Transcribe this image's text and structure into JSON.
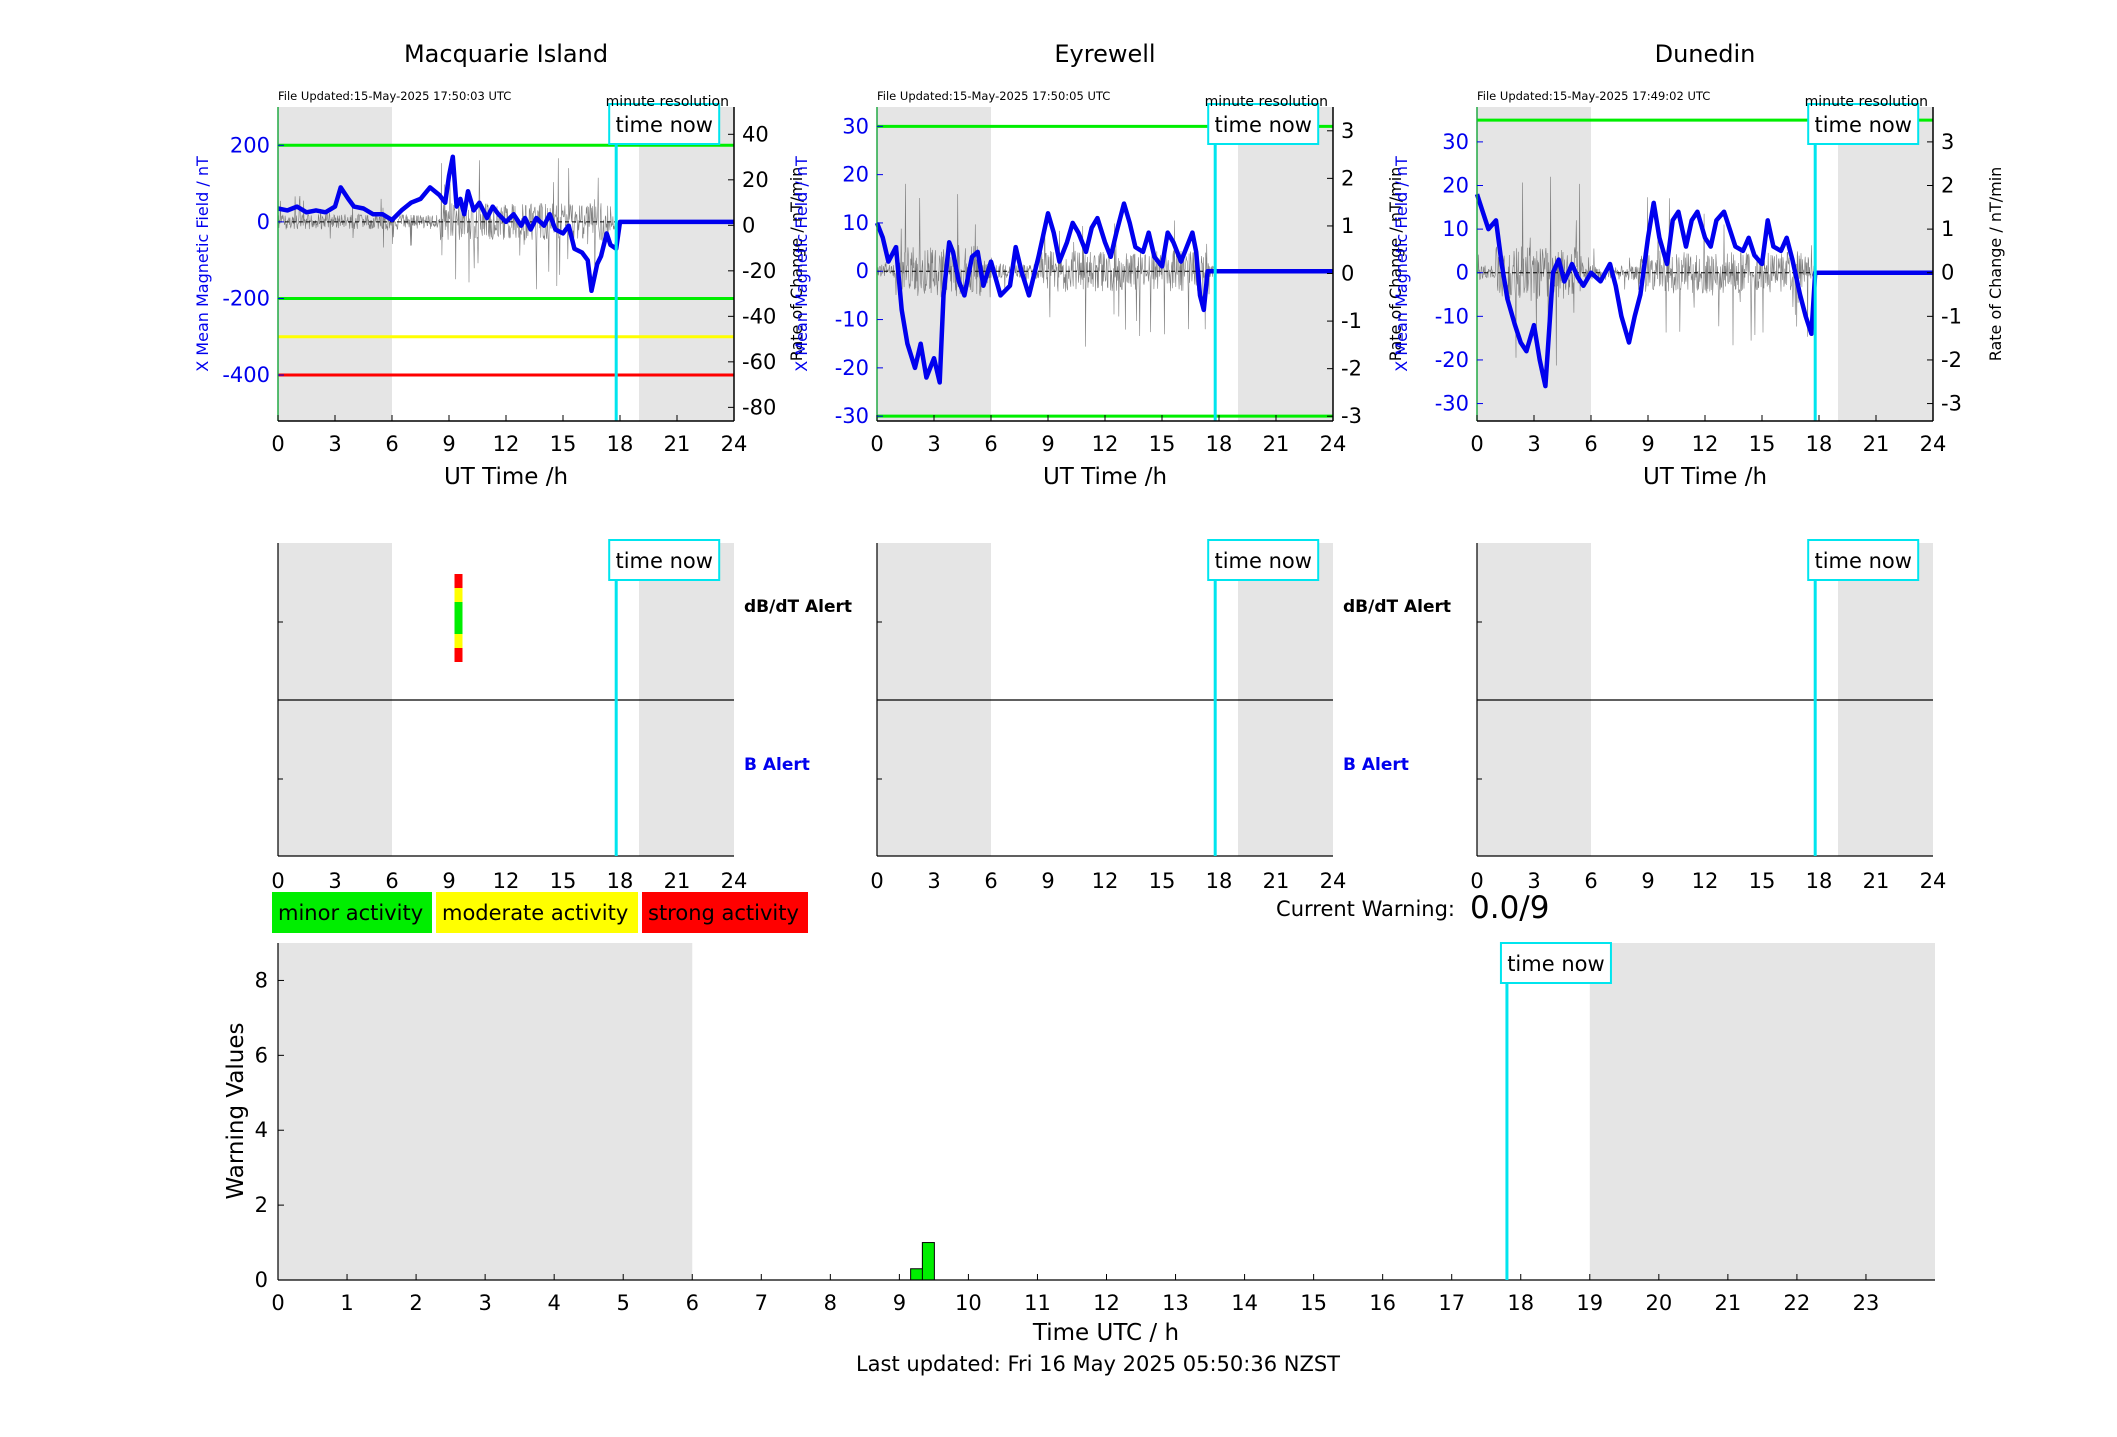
{
  "stations": [
    {
      "title": "Macquarie Island",
      "file_updated": "File Updated:15-May-2025 17:50:03 UTC"
    },
    {
      "title": "Eyrewell",
      "file_updated": "File Updated:15-May-2025 17:50:05 UTC"
    },
    {
      "title": "Dunedin",
      "file_updated": "File Updated:15-May-2025 17:49:02 UTC"
    }
  ],
  "labels": {
    "resolution": "minute resolution",
    "time_now": "time now",
    "ylabel_left": "X Mean Magnetic Field / nT",
    "ylabel_right": "Rate of Change / nT/min",
    "xlabel_top": "UT Time /h",
    "dbdt_alert": "dB/dT Alert",
    "b_alert": "B Alert",
    "current_warning_label": "Current Warning:",
    "current_warning_value": "0.0/9",
    "warning_ylabel": "Warning Values",
    "warning_xlabel": "Time UTC / h",
    "last_updated": "Last updated: Fri 16 May 2025 05:50:36 NZST"
  },
  "legend": [
    {
      "label": "minor activity",
      "color": "#00ee00"
    },
    {
      "label": "moderate activity",
      "color": "#ffff00"
    },
    {
      "label": "strong activity",
      "color": "#ff0000"
    }
  ],
  "colors": {
    "field": "#0000ee",
    "time_now": "#00e5ee",
    "shade": "#e5e5e5",
    "green": "#00ee00",
    "yellow": "#ffff00",
    "red": "#ff0000"
  },
  "chart_data": [
    {
      "type": "line",
      "station": "Macquarie Island",
      "xlabel": "UT Time /h",
      "ylabel": "X Mean Magnetic Field / nT",
      "ylabel_right": "Rate of Change / nT/min",
      "xlim": [
        0,
        24
      ],
      "ylim": [
        -520,
        300
      ],
      "ylim_right": [
        -86,
        52
      ],
      "xticks": [
        0,
        3,
        6,
        9,
        12,
        15,
        18,
        21,
        24
      ],
      "yticks": [
        -400,
        -200,
        0,
        200
      ],
      "yticks_right": [
        -80,
        -60,
        -40,
        -20,
        0,
        20,
        40
      ],
      "time_now": 17.8,
      "shaded": [
        [
          0,
          6
        ],
        [
          19,
          24
        ]
      ],
      "thresholds": [
        {
          "value": 200,
          "color": "green"
        },
        {
          "value": -200,
          "color": "green"
        },
        {
          "value": -300,
          "color": "yellow"
        },
        {
          "value": -400,
          "color": "red"
        }
      ],
      "series": [
        {
          "x": [
            0,
            0.5,
            1,
            1.5,
            2,
            2.5,
            3,
            3.3,
            3.7,
            4,
            4.5,
            5,
            5.5,
            6,
            6.5,
            7,
            7.5,
            8,
            8.5,
            8.8,
            9,
            9.2,
            9.4,
            9.6,
            9.8,
            10,
            10.3,
            10.6,
            11,
            11.3,
            11.6,
            12,
            12.4,
            12.8,
            13,
            13.3,
            13.6,
            14,
            14.3,
            14.6,
            15,
            15.3,
            15.6,
            16,
            16.3,
            16.5,
            16.8,
            17,
            17.3,
            17.5,
            17.8,
            18,
            24
          ],
          "y": [
            35,
            30,
            40,
            25,
            30,
            25,
            40,
            90,
            60,
            40,
            35,
            20,
            20,
            5,
            30,
            50,
            60,
            90,
            70,
            50,
            120,
            170,
            40,
            60,
            20,
            80,
            30,
            50,
            10,
            40,
            20,
            0,
            20,
            -10,
            10,
            -20,
            10,
            -10,
            20,
            -20,
            -30,
            -10,
            -70,
            -80,
            -100,
            -180,
            -110,
            -90,
            -30,
            -60,
            -70,
            0,
            0
          ]
        }
      ]
    },
    {
      "type": "line",
      "station": "Eyrewell",
      "xlabel": "UT Time /h",
      "ylabel": "X Mean Magnetic Field / nT",
      "ylabel_right": "Rate of Change / nT/min",
      "xlim": [
        0,
        24
      ],
      "ylim": [
        -31,
        34
      ],
      "ylim_right": [
        -3.1,
        3.5
      ],
      "xticks": [
        0,
        3,
        6,
        9,
        12,
        15,
        18,
        21,
        24
      ],
      "yticks": [
        -30,
        -20,
        -10,
        0,
        10,
        20,
        30
      ],
      "yticks_right": [
        -3,
        -2,
        -1,
        0,
        1,
        2,
        3
      ],
      "time_now": 17.8,
      "shaded": [
        [
          0,
          6
        ],
        [
          19,
          24
        ]
      ],
      "thresholds": [
        {
          "value": 30,
          "color": "green"
        },
        {
          "value": -30,
          "color": "green"
        }
      ],
      "series": [
        {
          "x": [
            0,
            0.3,
            0.6,
            1,
            1.3,
            1.6,
            2,
            2.3,
            2.6,
            3,
            3.3,
            3.5,
            3.8,
            4,
            4.3,
            4.6,
            5,
            5.3,
            5.6,
            6,
            6.5,
            7,
            7.3,
            7.6,
            8,
            8.5,
            9,
            9.3,
            9.6,
            10,
            10.3,
            10.6,
            11,
            11.3,
            11.6,
            12,
            12.3,
            12.6,
            13,
            13.3,
            13.6,
            14,
            14.3,
            14.6,
            15,
            15.3,
            15.6,
            16,
            16.3,
            16.6,
            16.8,
            17,
            17.2,
            17.4,
            17.6,
            18,
            24
          ],
          "y": [
            10,
            7,
            2,
            5,
            -8,
            -15,
            -20,
            -15,
            -22,
            -18,
            -23,
            -5,
            6,
            4,
            -2,
            -5,
            3,
            4,
            -3,
            2,
            -5,
            -3,
            5,
            0,
            -5,
            3,
            12,
            8,
            2,
            6,
            10,
            8,
            4,
            9,
            11,
            6,
            3,
            8,
            14,
            10,
            5,
            4,
            8,
            3,
            1,
            8,
            6,
            2,
            5,
            8,
            4,
            -5,
            -8,
            0,
            0,
            0,
            0
          ]
        }
      ]
    },
    {
      "type": "line",
      "station": "Dunedin",
      "xlabel": "UT Time /h",
      "ylabel": "X Mean Magnetic Field / nT",
      "ylabel_right": "Rate of Change / nT/min",
      "xlim": [
        0,
        24
      ],
      "ylim": [
        -34,
        38
      ],
      "ylim_right": [
        -3.4,
        3.8
      ],
      "xticks": [
        0,
        3,
        6,
        9,
        12,
        15,
        18,
        21,
        24
      ],
      "yticks": [
        -30,
        -20,
        -10,
        0,
        10,
        20,
        30
      ],
      "yticks_right": [
        -3,
        -2,
        -1,
        0,
        1,
        2,
        3
      ],
      "time_now": 17.8,
      "shaded": [
        [
          0,
          6
        ],
        [
          19,
          24
        ]
      ],
      "thresholds": [
        {
          "value": 35,
          "color": "green"
        }
      ],
      "series": [
        {
          "x": [
            0,
            0.3,
            0.6,
            1,
            1.3,
            1.6,
            2,
            2.3,
            2.6,
            3,
            3.3,
            3.6,
            4,
            4.3,
            4.6,
            5,
            5.3,
            5.6,
            6,
            6.5,
            7,
            7.3,
            7.6,
            8,
            8.3,
            8.6,
            9,
            9.3,
            9.6,
            10,
            10.3,
            10.6,
            11,
            11.3,
            11.6,
            12,
            12.3,
            12.6,
            13,
            13.3,
            13.6,
            14,
            14.3,
            14.6,
            15,
            15.3,
            15.6,
            16,
            16.3,
            16.6,
            17,
            17.3,
            17.6,
            17.8,
            24
          ],
          "y": [
            18,
            14,
            10,
            12,
            2,
            -6,
            -12,
            -16,
            -18,
            -12,
            -20,
            -26,
            0,
            3,
            -2,
            2,
            -1,
            -3,
            0,
            -2,
            2,
            -3,
            -10,
            -16,
            -10,
            -5,
            8,
            16,
            8,
            2,
            12,
            14,
            6,
            12,
            14,
            8,
            6,
            12,
            14,
            10,
            6,
            5,
            8,
            4,
            2,
            12,
            6,
            5,
            8,
            3,
            -5,
            -10,
            -14,
            0,
            0
          ]
        }
      ]
    },
    {
      "type": "bar",
      "xlabel": "Time UTC / h",
      "ylabel": "Warning Values",
      "xlim": [
        0,
        24
      ],
      "ylim": [
        0,
        9
      ],
      "xticks": [
        0,
        1,
        2,
        3,
        4,
        5,
        6,
        7,
        8,
        9,
        10,
        11,
        12,
        13,
        14,
        15,
        16,
        17,
        18,
        19,
        20,
        21,
        22,
        23
      ],
      "yticks": [
        0,
        2,
        4,
        6,
        8
      ],
      "time_now": 17.8,
      "shaded": [
        [
          0,
          6
        ],
        [
          19,
          24
        ]
      ],
      "bars": [
        {
          "x": 9.25,
          "value": 0.3
        },
        {
          "x": 9.42,
          "value": 1
        }
      ]
    }
  ],
  "alert_marker": {
    "x": 9.5,
    "segments": [
      {
        "color": "red"
      },
      {
        "color": "yellow"
      },
      {
        "color": "green"
      },
      {
        "color": "yellow"
      },
      {
        "color": "red"
      }
    ]
  }
}
